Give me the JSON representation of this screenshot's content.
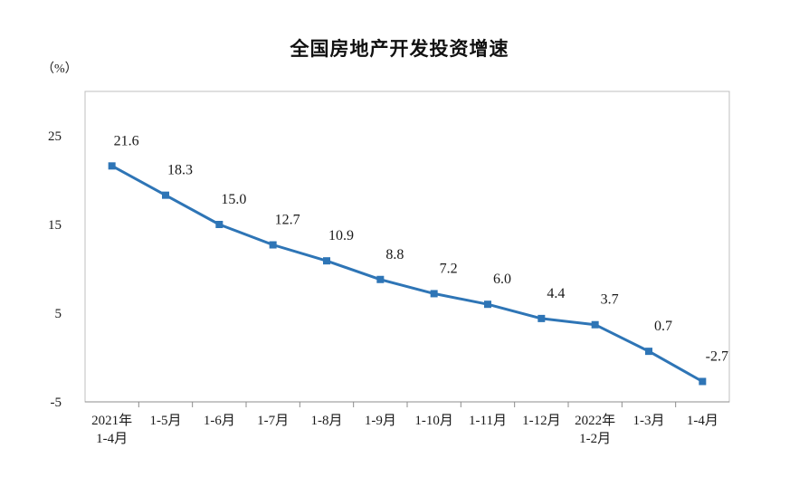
{
  "chart_data": {
    "type": "line",
    "title": "全国房地产开发投资增速",
    "ylabel": "（%）",
    "xlabel": "",
    "ylim": [
      -5,
      30
    ],
    "yticks": [
      25,
      15,
      5,
      -5
    ],
    "grid": false,
    "legend": "none",
    "categories": [
      [
        "2021年",
        "1-4月"
      ],
      [
        "1-5月"
      ],
      [
        "1-6月"
      ],
      [
        "1-7月"
      ],
      [
        "1-8月"
      ],
      [
        "1-9月"
      ],
      [
        "1-10月"
      ],
      [
        "1-11月"
      ],
      [
        "1-12月"
      ],
      [
        "2022年",
        "1-2月"
      ],
      [
        "1-3月"
      ],
      [
        "1-4月"
      ]
    ],
    "series": [
      {
        "values": [
          21.6,
          18.3,
          15.0,
          12.7,
          10.9,
          8.8,
          7.2,
          6.0,
          4.4,
          3.7,
          0.7,
          -2.7
        ],
        "labels": [
          "21.6",
          "18.3",
          "15.0",
          "12.7",
          "10.9",
          "8.8",
          "7.2",
          "6.0",
          "4.4",
          "3.7",
          "0.7",
          "-2.7"
        ],
        "color": "#2e75b6"
      }
    ]
  }
}
